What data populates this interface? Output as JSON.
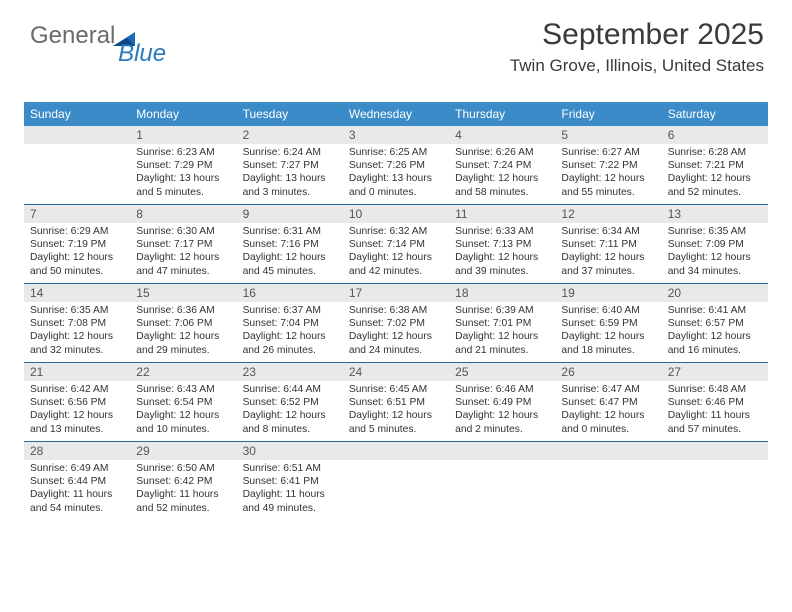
{
  "logo": {
    "text1": "General",
    "text2": "Blue"
  },
  "header": {
    "month_title": "September 2025",
    "location": "Twin Grove, Illinois, United States"
  },
  "calendar": {
    "accent_color": "#3b8bc9",
    "border_color": "#2a6aa0",
    "daynum_bg": "#e9e9ea",
    "days": [
      "Sunday",
      "Monday",
      "Tuesday",
      "Wednesday",
      "Thursday",
      "Friday",
      "Saturday"
    ],
    "weeks": [
      [
        {
          "n": "",
          "sr": "",
          "ss": "",
          "dl": ""
        },
        {
          "n": "1",
          "sr": "Sunrise: 6:23 AM",
          "ss": "Sunset: 7:29 PM",
          "dl": "Daylight: 13 hours and 5 minutes."
        },
        {
          "n": "2",
          "sr": "Sunrise: 6:24 AM",
          "ss": "Sunset: 7:27 PM",
          "dl": "Daylight: 13 hours and 3 minutes."
        },
        {
          "n": "3",
          "sr": "Sunrise: 6:25 AM",
          "ss": "Sunset: 7:26 PM",
          "dl": "Daylight: 13 hours and 0 minutes."
        },
        {
          "n": "4",
          "sr": "Sunrise: 6:26 AM",
          "ss": "Sunset: 7:24 PM",
          "dl": "Daylight: 12 hours and 58 minutes."
        },
        {
          "n": "5",
          "sr": "Sunrise: 6:27 AM",
          "ss": "Sunset: 7:22 PM",
          "dl": "Daylight: 12 hours and 55 minutes."
        },
        {
          "n": "6",
          "sr": "Sunrise: 6:28 AM",
          "ss": "Sunset: 7:21 PM",
          "dl": "Daylight: 12 hours and 52 minutes."
        }
      ],
      [
        {
          "n": "7",
          "sr": "Sunrise: 6:29 AM",
          "ss": "Sunset: 7:19 PM",
          "dl": "Daylight: 12 hours and 50 minutes."
        },
        {
          "n": "8",
          "sr": "Sunrise: 6:30 AM",
          "ss": "Sunset: 7:17 PM",
          "dl": "Daylight: 12 hours and 47 minutes."
        },
        {
          "n": "9",
          "sr": "Sunrise: 6:31 AM",
          "ss": "Sunset: 7:16 PM",
          "dl": "Daylight: 12 hours and 45 minutes."
        },
        {
          "n": "10",
          "sr": "Sunrise: 6:32 AM",
          "ss": "Sunset: 7:14 PM",
          "dl": "Daylight: 12 hours and 42 minutes."
        },
        {
          "n": "11",
          "sr": "Sunrise: 6:33 AM",
          "ss": "Sunset: 7:13 PM",
          "dl": "Daylight: 12 hours and 39 minutes."
        },
        {
          "n": "12",
          "sr": "Sunrise: 6:34 AM",
          "ss": "Sunset: 7:11 PM",
          "dl": "Daylight: 12 hours and 37 minutes."
        },
        {
          "n": "13",
          "sr": "Sunrise: 6:35 AM",
          "ss": "Sunset: 7:09 PM",
          "dl": "Daylight: 12 hours and 34 minutes."
        }
      ],
      [
        {
          "n": "14",
          "sr": "Sunrise: 6:35 AM",
          "ss": "Sunset: 7:08 PM",
          "dl": "Daylight: 12 hours and 32 minutes."
        },
        {
          "n": "15",
          "sr": "Sunrise: 6:36 AM",
          "ss": "Sunset: 7:06 PM",
          "dl": "Daylight: 12 hours and 29 minutes."
        },
        {
          "n": "16",
          "sr": "Sunrise: 6:37 AM",
          "ss": "Sunset: 7:04 PM",
          "dl": "Daylight: 12 hours and 26 minutes."
        },
        {
          "n": "17",
          "sr": "Sunrise: 6:38 AM",
          "ss": "Sunset: 7:02 PM",
          "dl": "Daylight: 12 hours and 24 minutes."
        },
        {
          "n": "18",
          "sr": "Sunrise: 6:39 AM",
          "ss": "Sunset: 7:01 PM",
          "dl": "Daylight: 12 hours and 21 minutes."
        },
        {
          "n": "19",
          "sr": "Sunrise: 6:40 AM",
          "ss": "Sunset: 6:59 PM",
          "dl": "Daylight: 12 hours and 18 minutes."
        },
        {
          "n": "20",
          "sr": "Sunrise: 6:41 AM",
          "ss": "Sunset: 6:57 PM",
          "dl": "Daylight: 12 hours and 16 minutes."
        }
      ],
      [
        {
          "n": "21",
          "sr": "Sunrise: 6:42 AM",
          "ss": "Sunset: 6:56 PM",
          "dl": "Daylight: 12 hours and 13 minutes."
        },
        {
          "n": "22",
          "sr": "Sunrise: 6:43 AM",
          "ss": "Sunset: 6:54 PM",
          "dl": "Daylight: 12 hours and 10 minutes."
        },
        {
          "n": "23",
          "sr": "Sunrise: 6:44 AM",
          "ss": "Sunset: 6:52 PM",
          "dl": "Daylight: 12 hours and 8 minutes."
        },
        {
          "n": "24",
          "sr": "Sunrise: 6:45 AM",
          "ss": "Sunset: 6:51 PM",
          "dl": "Daylight: 12 hours and 5 minutes."
        },
        {
          "n": "25",
          "sr": "Sunrise: 6:46 AM",
          "ss": "Sunset: 6:49 PM",
          "dl": "Daylight: 12 hours and 2 minutes."
        },
        {
          "n": "26",
          "sr": "Sunrise: 6:47 AM",
          "ss": "Sunset: 6:47 PM",
          "dl": "Daylight: 12 hours and 0 minutes."
        },
        {
          "n": "27",
          "sr": "Sunrise: 6:48 AM",
          "ss": "Sunset: 6:46 PM",
          "dl": "Daylight: 11 hours and 57 minutes."
        }
      ],
      [
        {
          "n": "28",
          "sr": "Sunrise: 6:49 AM",
          "ss": "Sunset: 6:44 PM",
          "dl": "Daylight: 11 hours and 54 minutes."
        },
        {
          "n": "29",
          "sr": "Sunrise: 6:50 AM",
          "ss": "Sunset: 6:42 PM",
          "dl": "Daylight: 11 hours and 52 minutes."
        },
        {
          "n": "30",
          "sr": "Sunrise: 6:51 AM",
          "ss": "Sunset: 6:41 PM",
          "dl": "Daylight: 11 hours and 49 minutes."
        },
        {
          "n": "",
          "sr": "",
          "ss": "",
          "dl": ""
        },
        {
          "n": "",
          "sr": "",
          "ss": "",
          "dl": ""
        },
        {
          "n": "",
          "sr": "",
          "ss": "",
          "dl": ""
        },
        {
          "n": "",
          "sr": "",
          "ss": "",
          "dl": ""
        }
      ]
    ]
  }
}
